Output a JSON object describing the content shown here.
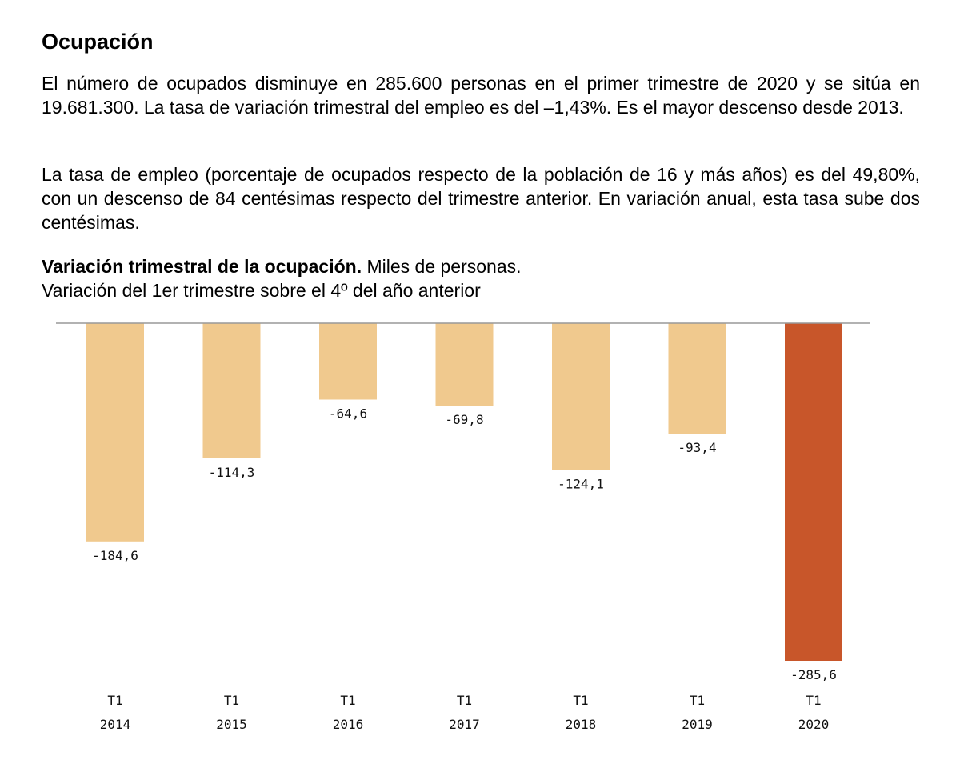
{
  "section": {
    "title": "Ocupación",
    "paragraphs": [
      "El número de ocupados disminuye en 285.600 personas en el primer trimestre de 2020 y se sitúa en 19.681.300. La tasa de variación trimestral del empleo es del –1,43%. Es el mayor descenso desde 2013.",
      "La tasa de empleo (porcentaje de ocupados respecto de la población de 16 y más años) es del 49,80%, con un descenso de 84 centésimas respecto del trimestre anterior. En variación anual, esta tasa sube dos centésimas."
    ]
  },
  "chart_caption": {
    "bold": "Variación trimestral de la ocupación.",
    "rest": " Miles de personas.",
    "line2": "Variación del 1er trimestre sobre el 4º del año anterior"
  },
  "chart_data": {
    "type": "bar",
    "title": "Variación trimestral de la ocupación. Miles de personas.",
    "subtitle": "Variación del 1er trimestre sobre el 4º del año anterior",
    "categories": [
      {
        "quarter": "T1",
        "year": "2014"
      },
      {
        "quarter": "T1",
        "year": "2015"
      },
      {
        "quarter": "T1",
        "year": "2016"
      },
      {
        "quarter": "T1",
        "year": "2017"
      },
      {
        "quarter": "T1",
        "year": "2018"
      },
      {
        "quarter": "T1",
        "year": "2019"
      },
      {
        "quarter": "T1",
        "year": "2020"
      }
    ],
    "values": [
      -184.6,
      -114.3,
      -64.6,
      -69.8,
      -124.1,
      -93.4,
      -285.6
    ],
    "value_labels": [
      "-184,6",
      "-114,3",
      "-64,6",
      "-69,8",
      "-124,1",
      "-93,4",
      "-285,6"
    ],
    "ylim": [
      -285.6,
      0
    ],
    "colors": {
      "default_bar": "#F0C98E",
      "highlight_bar": "#C8562A",
      "baseline": "#999999"
    },
    "highlight_index": 6,
    "grid": false,
    "legend": "none"
  }
}
